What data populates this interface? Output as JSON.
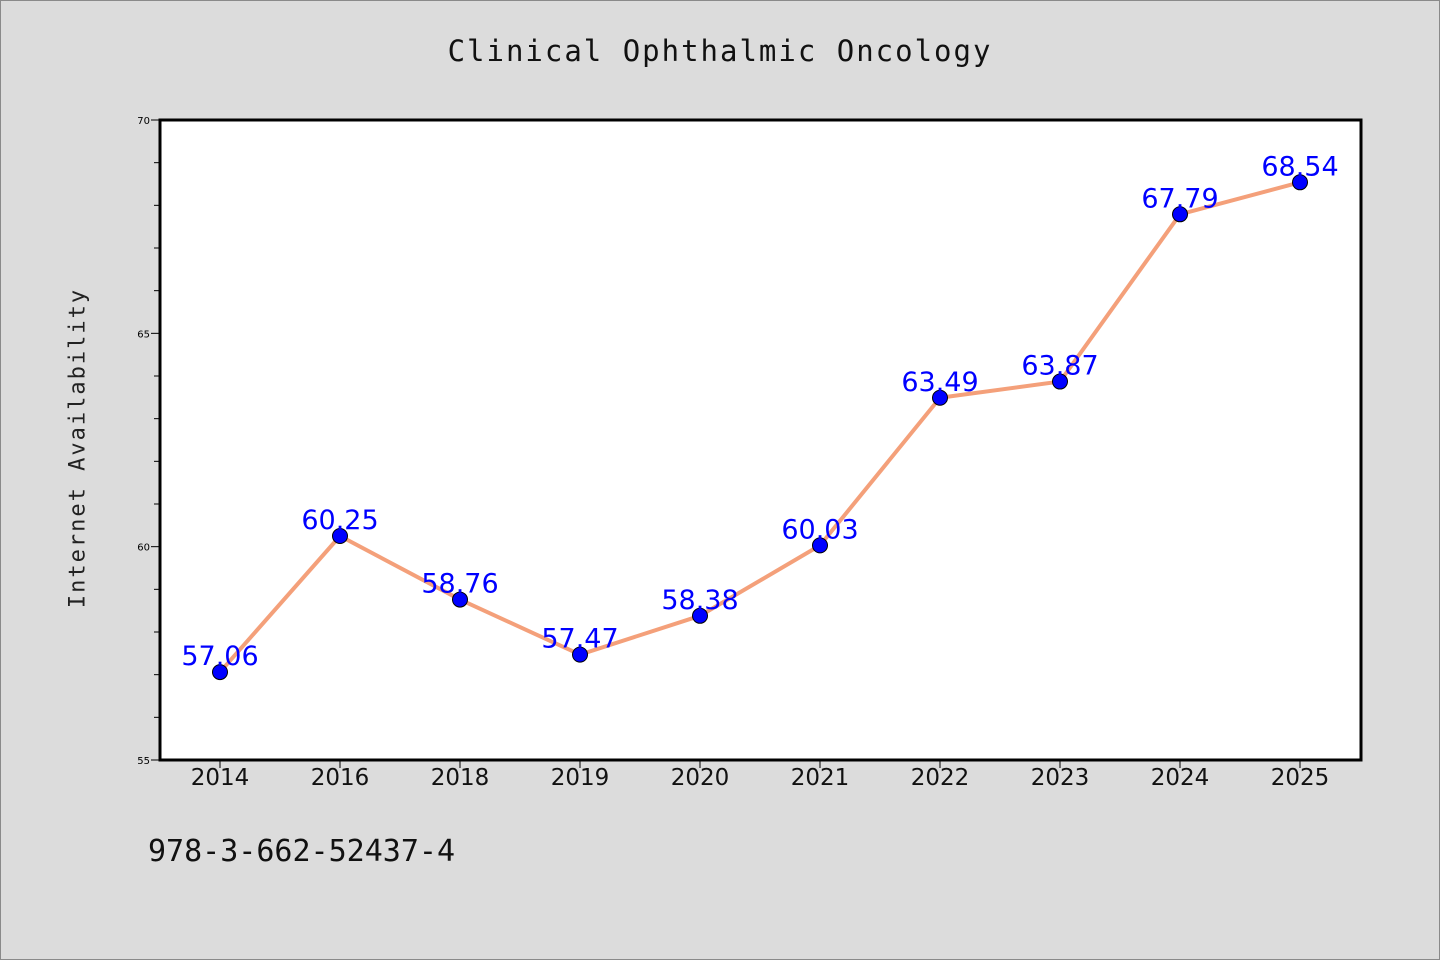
{
  "chart_data": {
    "type": "line",
    "title": "Clinical Ophthalmic Oncology",
    "xlabel": "",
    "ylabel": "Internet Availability",
    "categories": [
      "2014",
      "2016",
      "2018",
      "2019",
      "2020",
      "2021",
      "2022",
      "2023",
      "2024",
      "2025"
    ],
    "series": [
      {
        "values": [
          57.06,
          60.25,
          58.76,
          57.47,
          58.38,
          60.03,
          63.49,
          63.87,
          67.79,
          68.54
        ],
        "labels": [
          "57.06",
          "60.25",
          "58.76",
          "57.47",
          "58.38",
          "60.03",
          "63.49",
          "63.87",
          "67.79",
          "68.54"
        ],
        "line_color": "#f4a07a",
        "marker_color": "#0000ff"
      }
    ],
    "ylim": [
      55,
      70
    ],
    "y_ticks": [
      "55",
      "60",
      "65",
      "70"
    ],
    "grid": false,
    "data_label_color": "#0000ff"
  },
  "footer": {
    "isbn": "978-3-662-52437-4"
  }
}
